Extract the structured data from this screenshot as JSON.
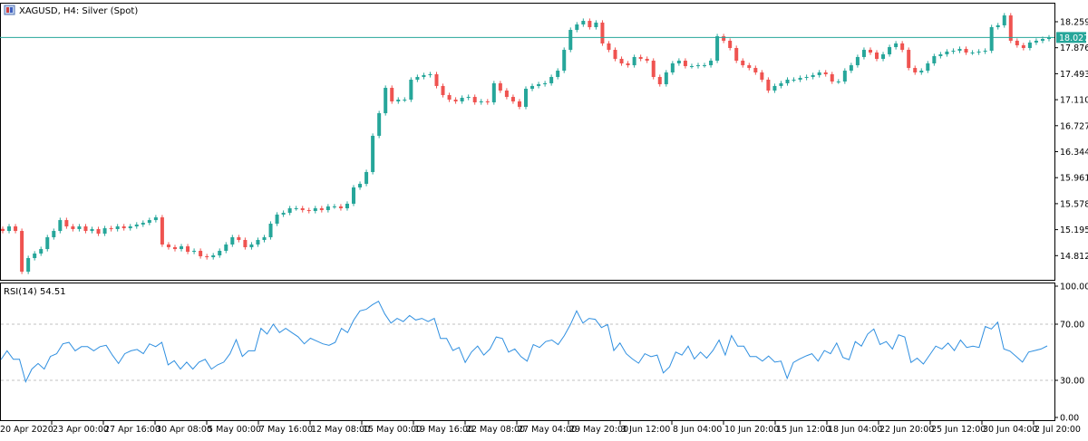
{
  "header": {
    "symbol_title": "XAGUSD, H4:  Silver (Spot)"
  },
  "colors": {
    "bull": "#26a69a",
    "bear": "#ef5350",
    "price_line": "#26a69a",
    "rsi_line": "#2f8fe0",
    "level_line": "#c0c0c0"
  },
  "chart_data": [
    {
      "type": "candlestick",
      "title": "XAGUSD, H4:  Silver (Spot)",
      "current_price": 18.027,
      "current_price_label": "18.027",
      "y_ticks": [
        "18.259",
        "17.876",
        "17.493",
        "17.110",
        "16.727",
        "16.344",
        "15.961",
        "15.578",
        "15.195",
        "14.812"
      ],
      "x_tick_labels": [
        "20 Apr 2020",
        "23 Apr 00:00",
        "27 Apr 16:00",
        "30 Apr 08:00",
        "5 May 00:00",
        "7 May 16:00",
        "12 May 08:00",
        "15 May 00:00",
        "19 May 16:00",
        "22 May 08:00",
        "27 May 04:00",
        "29 May 20:00",
        "3 Jun 12:00",
        "8 Jun 04:00",
        "10 Jun 20:00",
        "15 Jun 12:00",
        "18 Jun 04:00",
        "22 Jun 20:00",
        "25 Jun 12:00",
        "30 Jun 04:00",
        "2 Jul 20:00"
      ],
      "closes": [
        15.176,
        15.243,
        15.176,
        14.576,
        14.776,
        14.843,
        14.909,
        15.083,
        15.176,
        15.336,
        15.243,
        15.203,
        15.243,
        15.176,
        15.203,
        15.136,
        15.216,
        15.203,
        15.243,
        15.216,
        15.243,
        15.27,
        15.296,
        15.336,
        15.376,
        14.976,
        14.936,
        14.909,
        14.949,
        14.869,
        14.883,
        14.803,
        14.789,
        14.816,
        14.883,
        14.976,
        15.083,
        15.043,
        14.936,
        14.976,
        15.043,
        15.083,
        15.283,
        15.417,
        15.443,
        15.51,
        15.51,
        15.483,
        15.47,
        15.51,
        15.483,
        15.537,
        15.537,
        15.51,
        15.577,
        15.817,
        15.87,
        16.044,
        16.578,
        16.911,
        17.285,
        17.085,
        17.111,
        17.111,
        17.405,
        17.445,
        17.472,
        17.485,
        17.312,
        17.178,
        17.111,
        17.085,
        17.138,
        17.151,
        17.071,
        17.085,
        17.071,
        17.352,
        17.245,
        17.151,
        17.085,
        17.005,
        17.271,
        17.312,
        17.338,
        17.352,
        17.445,
        17.538,
        17.845,
        18.139,
        18.219,
        18.272,
        18.179,
        18.246,
        17.939,
        17.845,
        17.712,
        17.645,
        17.618,
        17.739,
        17.712,
        17.685,
        17.445,
        17.338,
        17.512,
        17.645,
        17.685,
        17.605,
        17.605,
        17.618,
        17.618,
        17.685,
        18.045,
        17.979,
        17.872,
        17.685,
        17.618,
        17.578,
        17.512,
        17.405,
        17.245,
        17.312,
        17.352,
        17.405,
        17.405,
        17.432,
        17.445,
        17.472,
        17.512,
        17.485,
        17.378,
        17.378,
        17.538,
        17.618,
        17.739,
        17.845,
        17.805,
        17.712,
        17.779,
        17.885,
        17.939,
        17.845,
        17.578,
        17.512,
        17.538,
        17.645,
        17.752,
        17.779,
        17.819,
        17.832,
        17.859,
        17.805,
        17.805,
        17.819,
        17.832,
        18.179,
        18.206,
        18.352,
        17.979,
        17.912,
        17.872,
        17.952,
        17.979,
        18.005,
        18.027
      ]
    },
    {
      "type": "line",
      "title": "RSI(14) 54.51",
      "ylim": [
        0,
        100
      ],
      "levels": [
        70,
        30
      ],
      "y_ticks": [
        "100.00",
        "70.00",
        "30.00",
        "0.00"
      ],
      "values": [
        44.8,
        51,
        45,
        45,
        29,
        38,
        42,
        38,
        47,
        49,
        56,
        57,
        51,
        54,
        54,
        51,
        54,
        55,
        48,
        42,
        49,
        51,
        52,
        49,
        56,
        54,
        57,
        41,
        44,
        38,
        43,
        38,
        43,
        45,
        38,
        41,
        43,
        49,
        59,
        47,
        51,
        51,
        67,
        63,
        70,
        64,
        67,
        64,
        61,
        56,
        60,
        58,
        56,
        55,
        57,
        67,
        64,
        73,
        79.5,
        80.6,
        83.8,
        86.3,
        77.3,
        70.8,
        74.1,
        71.9,
        76.2,
        73,
        74.1,
        71.9,
        74.1,
        59.8,
        59.8,
        51.2,
        53.4,
        42.7,
        50.1,
        54.4,
        48,
        52.3,
        60.9,
        59.8,
        50.1,
        52.3,
        46.9,
        43.7,
        55.5,
        53.4,
        57.6,
        58.7,
        55.5,
        61.9,
        69.8,
        79.5,
        70.8,
        74.1,
        73.5,
        67.6,
        69.8,
        51.2,
        56.6,
        49,
        45.2,
        42.2,
        49,
        46.9,
        48,
        35.3,
        39.6,
        50.1,
        48,
        54.4,
        45.2,
        50.1,
        45.8,
        51.2,
        58.7,
        48,
        61.9,
        54.4,
        54.4,
        46.9,
        46.9,
        43.7,
        47.3,
        43,
        43.7,
        31.4,
        42.7,
        45.2,
        47.3,
        49,
        43.7,
        51.2,
        49,
        56.6,
        46.3,
        44.7,
        57.6,
        54.4,
        63,
        66.6,
        55.5,
        57.6,
        52.3,
        62.4,
        60.9,
        42.7,
        45.8,
        41.6,
        48,
        54.4,
        52.3,
        56.6,
        51.2,
        58.7,
        53.4,
        54.4,
        53.4,
        68.3,
        66.6,
        71.4,
        52.3,
        50.8,
        46.9,
        43,
        50.1,
        51.2,
        52.3,
        54.51
      ]
    }
  ]
}
